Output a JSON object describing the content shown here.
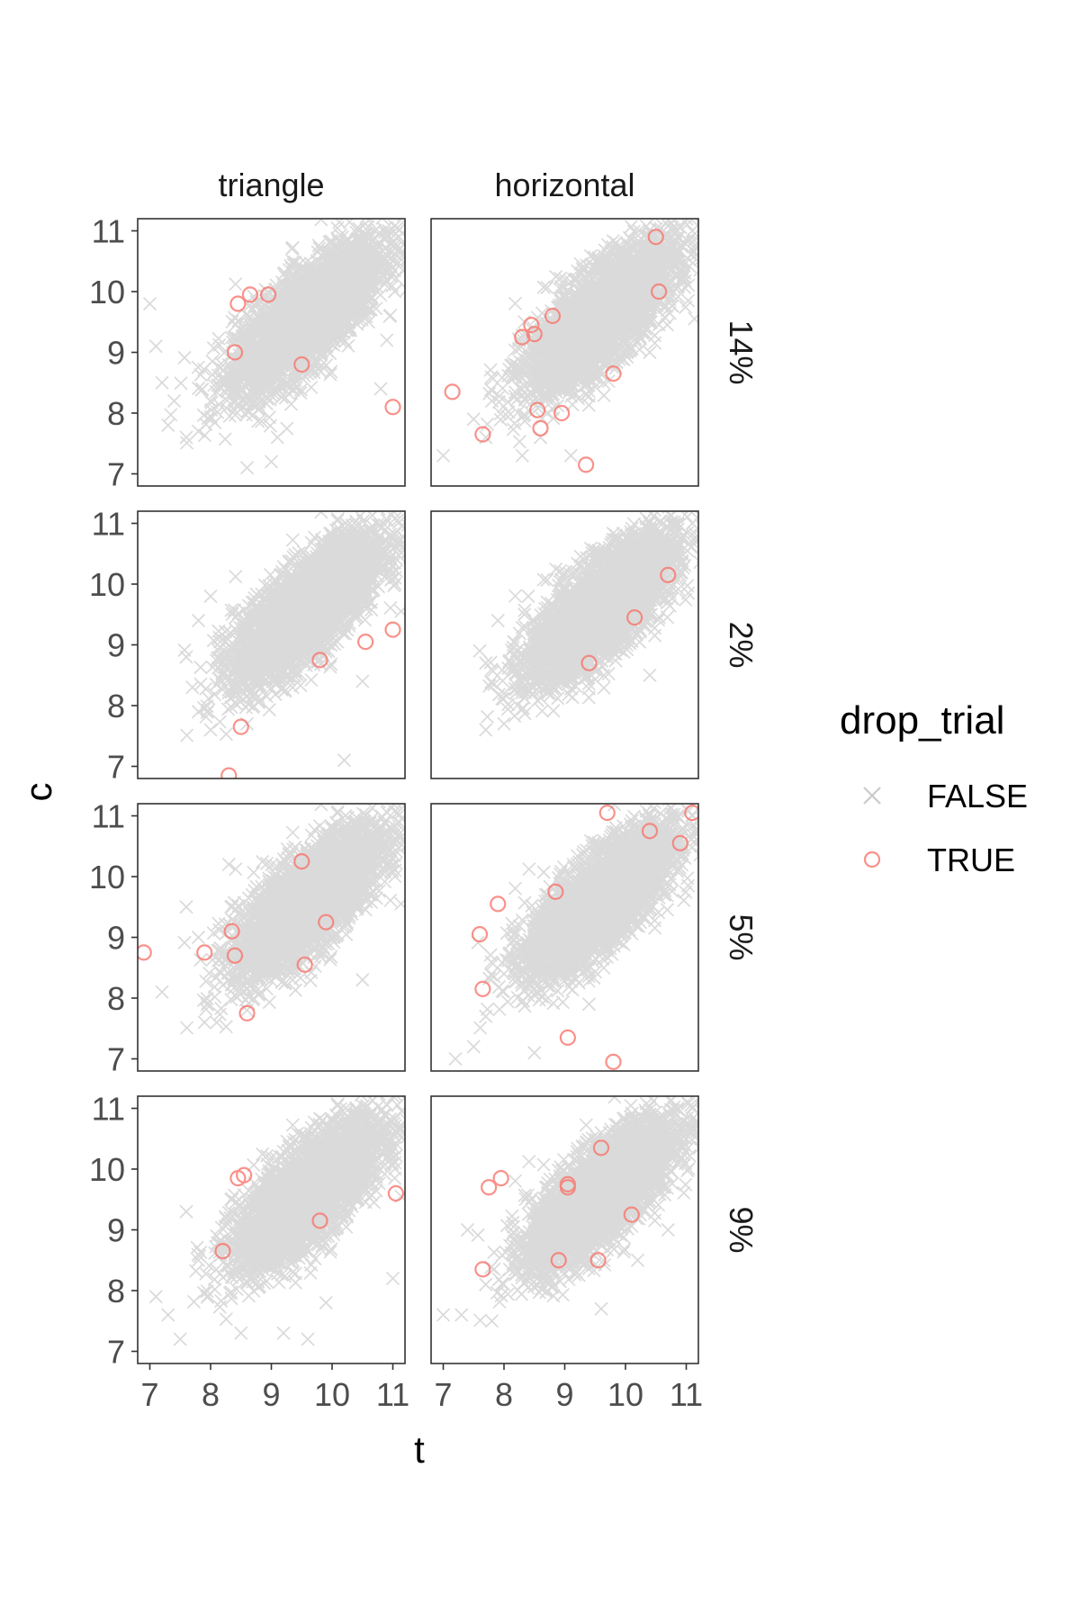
{
  "chart_data": {
    "type": "scatter",
    "facet_columns": [
      "triangle",
      "horizontal"
    ],
    "facet_rows": [
      "14%",
      "2%",
      "5%",
      "9%"
    ],
    "xlabel": "t",
    "ylabel": "c",
    "xlim": [
      6.8,
      11.2
    ],
    "ylim": [
      6.8,
      11.2
    ],
    "x_ticks": [
      7,
      8,
      9,
      10,
      11
    ],
    "y_ticks": [
      7,
      8,
      9,
      10,
      11
    ],
    "grid": false,
    "legend": {
      "title": "drop_trial",
      "position": "right",
      "entries": [
        {
          "label": "FALSE",
          "shape": "cross",
          "color": "#bdbdbd"
        },
        {
          "label": "TRUE",
          "shape": "open-circle",
          "color": "#f8766d"
        }
      ]
    },
    "cloud": {
      "false_points_count_approx": 3000,
      "correlation_approx": 0.75,
      "center": [
        9.6,
        9.6
      ],
      "sd": [
        0.6,
        0.6
      ]
    },
    "panels": [
      {
        "column": "triangle",
        "row": "14%",
        "false_outliers": [
          [
            7.0,
            9.8
          ],
          [
            7.1,
            9.1
          ],
          [
            7.2,
            8.5
          ],
          [
            7.4,
            8.2
          ],
          [
            7.3,
            7.8
          ],
          [
            7.6,
            7.6
          ],
          [
            7.8,
            7.7
          ],
          [
            8.6,
            7.1
          ],
          [
            9.0,
            7.2
          ],
          [
            9.1,
            7.6
          ],
          [
            10.8,
            8.4
          ],
          [
            10.9,
            9.2
          ],
          [
            8.0,
            8.2
          ],
          [
            11.1,
            10.9
          ]
        ],
        "true_points": [
          [
            8.45,
            9.8
          ],
          [
            8.65,
            9.95
          ],
          [
            8.95,
            9.95
          ],
          [
            8.4,
            9.0
          ],
          [
            9.5,
            8.8
          ],
          [
            11.0,
            8.1
          ]
        ]
      },
      {
        "column": "horizontal",
        "row": "14%",
        "false_outliers": [
          [
            7.0,
            7.3
          ],
          [
            7.5,
            7.9
          ],
          [
            7.7,
            7.6
          ],
          [
            8.3,
            7.3
          ],
          [
            8.6,
            7.6
          ],
          [
            9.1,
            7.3
          ],
          [
            11.1,
            11.0
          ],
          [
            10.4,
            9.0
          ],
          [
            7.8,
            8.2
          ]
        ],
        "true_points": [
          [
            7.15,
            8.35
          ],
          [
            7.65,
            7.65
          ],
          [
            8.3,
            9.25
          ],
          [
            8.45,
            9.45
          ],
          [
            8.5,
            9.3
          ],
          [
            8.8,
            9.6
          ],
          [
            8.55,
            8.05
          ],
          [
            8.6,
            7.75
          ],
          [
            8.95,
            8.0
          ],
          [
            9.35,
            7.15
          ],
          [
            9.8,
            8.65
          ],
          [
            10.5,
            10.9
          ],
          [
            10.55,
            10.0
          ]
        ]
      },
      {
        "column": "triangle",
        "row": "2%",
        "false_outliers": [
          [
            7.6,
            8.8
          ],
          [
            7.8,
            9.4
          ],
          [
            7.7,
            8.3
          ],
          [
            7.8,
            7.9
          ],
          [
            8.0,
            7.6
          ],
          [
            8.6,
            7.7
          ],
          [
            10.2,
            7.1
          ],
          [
            10.5,
            8.4
          ],
          [
            8.0,
            9.8
          ]
        ],
        "true_points": [
          [
            8.5,
            7.65
          ],
          [
            8.3,
            6.85
          ],
          [
            9.8,
            8.75
          ],
          [
            10.55,
            9.05
          ],
          [
            11.0,
            9.25
          ]
        ]
      },
      {
        "column": "horizontal",
        "row": "2%",
        "false_outliers": [
          [
            7.6,
            8.9
          ],
          [
            7.7,
            8.7
          ],
          [
            8.0,
            8.2
          ],
          [
            8.0,
            7.7
          ],
          [
            8.4,
            9.8
          ],
          [
            7.9,
            9.4
          ],
          [
            10.4,
            8.5
          ],
          [
            11.1,
            11.0
          ],
          [
            7.7,
            7.6
          ]
        ],
        "true_points": [
          [
            10.15,
            9.45
          ],
          [
            10.7,
            10.15
          ],
          [
            9.4,
            8.7
          ]
        ]
      },
      {
        "column": "triangle",
        "row": "5%",
        "false_outliers": [
          [
            7.2,
            8.1
          ],
          [
            7.6,
            9.5
          ],
          [
            7.9,
            7.6
          ],
          [
            8.1,
            7.6
          ],
          [
            8.6,
            7.8
          ],
          [
            10.5,
            8.3
          ],
          [
            11.1,
            10.9
          ],
          [
            7.8,
            9.0
          ],
          [
            8.3,
            10.2
          ]
        ],
        "true_points": [
          [
            6.9,
            8.75
          ],
          [
            7.9,
            8.75
          ],
          [
            8.35,
            9.1
          ],
          [
            8.4,
            8.7
          ],
          [
            8.6,
            7.75
          ],
          [
            9.5,
            10.25
          ],
          [
            9.55,
            8.55
          ],
          [
            9.9,
            9.25
          ]
        ]
      },
      {
        "column": "horizontal",
        "row": "5%",
        "false_outliers": [
          [
            7.2,
            7.0
          ],
          [
            7.5,
            7.2
          ],
          [
            7.7,
            7.7
          ],
          [
            8.5,
            7.1
          ],
          [
            8.0,
            8.4
          ],
          [
            9.4,
            7.9
          ],
          [
            10.6,
            10.9
          ],
          [
            11.1,
            11.0
          ],
          [
            8.6,
            9.0
          ]
        ],
        "true_points": [
          [
            7.6,
            9.05
          ],
          [
            7.65,
            8.15
          ],
          [
            7.9,
            9.55
          ],
          [
            8.85,
            9.75
          ],
          [
            9.05,
            7.35
          ],
          [
            9.8,
            6.95
          ],
          [
            9.7,
            11.05
          ],
          [
            10.9,
            10.55
          ],
          [
            11.1,
            11.05
          ],
          [
            10.4,
            10.75
          ]
        ]
      },
      {
        "column": "triangle",
        "row": "9%",
        "false_outliers": [
          [
            7.1,
            7.9
          ],
          [
            7.3,
            7.6
          ],
          [
            7.5,
            7.2
          ],
          [
            7.6,
            9.3
          ],
          [
            7.8,
            8.5
          ],
          [
            8.5,
            7.3
          ],
          [
            9.2,
            7.3
          ],
          [
            9.6,
            7.2
          ],
          [
            9.9,
            7.8
          ],
          [
            11.0,
            8.2
          ],
          [
            8.1,
            8.9
          ]
        ],
        "true_points": [
          [
            8.2,
            8.65
          ],
          [
            8.45,
            9.85
          ],
          [
            8.55,
            9.9
          ],
          [
            9.8,
            9.15
          ],
          [
            11.05,
            9.6
          ]
        ]
      },
      {
        "column": "horizontal",
        "row": "9%",
        "false_outliers": [
          [
            7.0,
            7.6
          ],
          [
            7.3,
            7.6
          ],
          [
            7.8,
            7.5
          ],
          [
            7.7,
            8.1
          ],
          [
            7.4,
            9.0
          ],
          [
            9.6,
            7.7
          ],
          [
            9.6,
            10.6
          ],
          [
            11.0,
            10.5
          ],
          [
            11.1,
            11.0
          ],
          [
            10.7,
            9.0
          ],
          [
            10.2,
            8.5
          ]
        ],
        "true_points": [
          [
            7.65,
            8.35
          ],
          [
            7.75,
            9.7
          ],
          [
            7.95,
            9.85
          ],
          [
            9.05,
            9.7
          ],
          [
            9.05,
            9.75
          ],
          [
            9.55,
            8.5
          ],
          [
            10.1,
            9.25
          ],
          [
            9.6,
            10.35
          ],
          [
            8.9,
            8.5
          ]
        ]
      }
    ]
  }
}
